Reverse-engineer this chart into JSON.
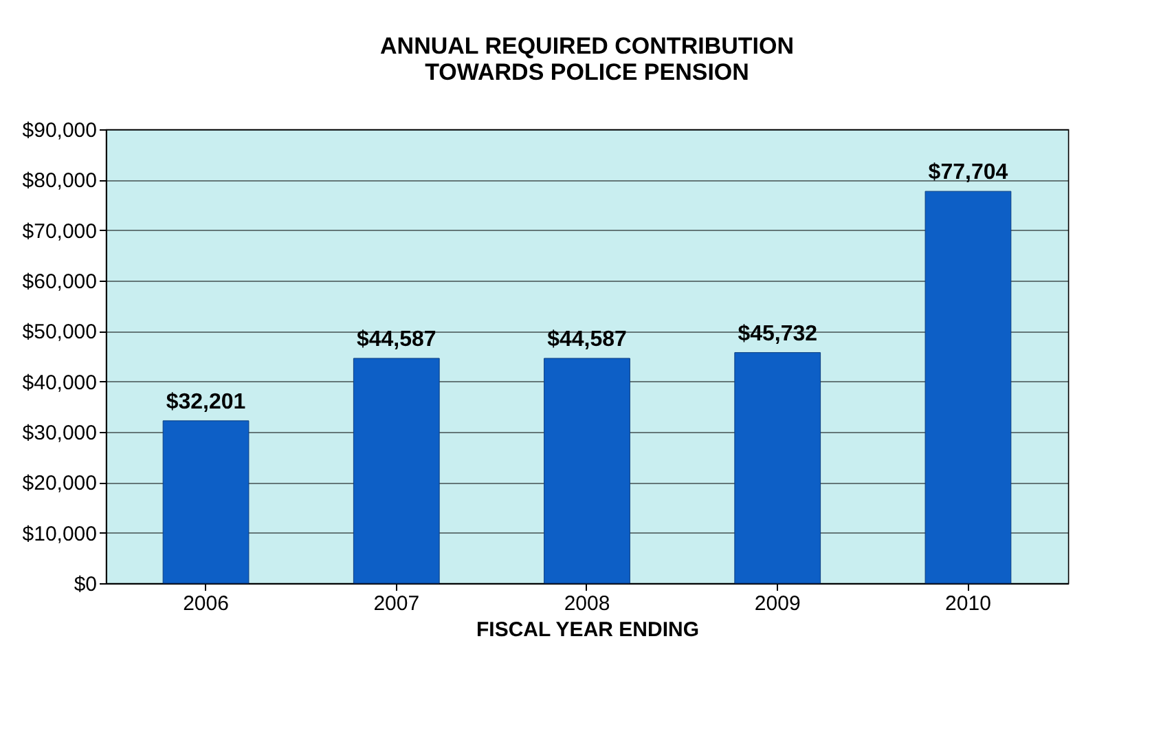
{
  "chart_data": {
    "type": "bar",
    "title": [
      "ANNUAL REQUIRED CONTRIBUTION",
      "TOWARDS POLICE PENSION"
    ],
    "xlabel": "FISCAL YEAR ENDING",
    "categories": [
      "2006",
      "2007",
      "2008",
      "2009",
      "2010"
    ],
    "values": [
      32201,
      44587,
      44587,
      45732,
      77704
    ],
    "value_labels": [
      "$32,201",
      "$44,587",
      "$44,587",
      "$45,732",
      "$77,704"
    ],
    "color": "#0d5fc6",
    "ylim": [
      0,
      90000
    ],
    "yticks": [
      {
        "value": 0,
        "label": "$0"
      },
      {
        "value": 10000,
        "label": "$10,000"
      },
      {
        "value": 20000,
        "label": "$20,000"
      },
      {
        "value": 30000,
        "label": "$30,000"
      },
      {
        "value": 40000,
        "label": "$40,000"
      },
      {
        "value": 50000,
        "label": "$50,000"
      },
      {
        "value": 60000,
        "label": "$60,000"
      },
      {
        "value": 70000,
        "label": "$70,000"
      },
      {
        "value": 80000,
        "label": "$80,000"
      },
      {
        "value": 90000,
        "label": "$90,000"
      }
    ],
    "grid": "y"
  }
}
